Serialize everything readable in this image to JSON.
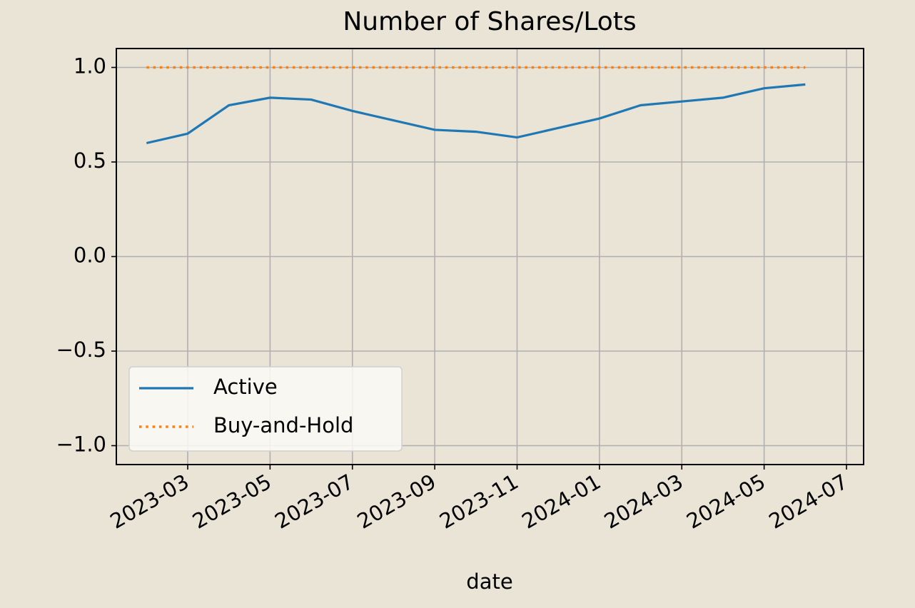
{
  "chart_data": {
    "type": "line",
    "title": "Number of Shares/Lots",
    "x_label": "date",
    "x": [
      "2023-02",
      "2023-03",
      "2023-04",
      "2023-05",
      "2023-06",
      "2023-07",
      "2023-08",
      "2023-09",
      "2023-10",
      "2023-11",
      "2023-12",
      "2024-01",
      "2024-02",
      "2024-03",
      "2024-04",
      "2024-05",
      "2024-06"
    ],
    "series": [
      {
        "name": "Active",
        "color": "#1f77b4",
        "style": "solid",
        "values": [
          0.6,
          0.65,
          0.8,
          0.84,
          0.83,
          0.77,
          0.72,
          0.67,
          0.66,
          0.63,
          0.68,
          0.73,
          0.8,
          0.82,
          0.84,
          0.89,
          0.91
        ]
      },
      {
        "name": "Buy-and-Hold",
        "color": "#ff7f0e",
        "style": "dotted",
        "values": [
          1.0,
          1.0,
          1.0,
          1.0,
          1.0,
          1.0,
          1.0,
          1.0,
          1.0,
          1.0,
          1.0,
          1.0,
          1.0,
          1.0,
          1.0,
          1.0,
          1.0
        ]
      }
    ],
    "ylim": [
      -1.1,
      1.1
    ],
    "yticks": [
      {
        "value": -1.0,
        "label": "−1.0"
      },
      {
        "value": -0.5,
        "label": "−0.5"
      },
      {
        "value": 0.0,
        "label": "0.0"
      },
      {
        "value": 0.5,
        "label": "0.5"
      },
      {
        "value": 1.0,
        "label": "1.0"
      }
    ],
    "xticks": [
      "2023-03",
      "2023-05",
      "2023-07",
      "2023-09",
      "2023-11",
      "2024-01",
      "2024-03",
      "2024-05",
      "2024-07"
    ],
    "grid": true,
    "legend": "lower left"
  }
}
